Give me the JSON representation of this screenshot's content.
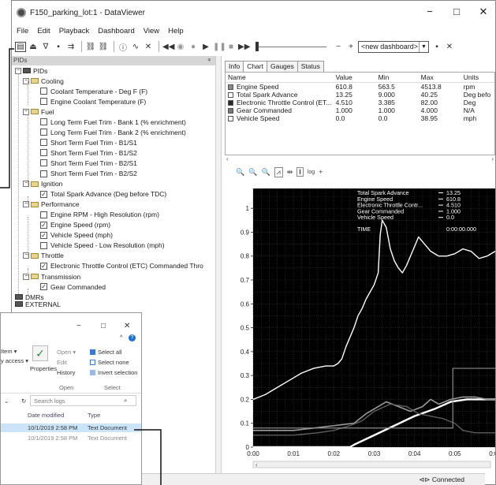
{
  "window": {
    "title": "F150_parking_lot:1 - DataViewer",
    "minimize": "−",
    "maximize": "□",
    "close": "✕"
  },
  "menu": [
    "File",
    "Edit",
    "Playback",
    "Dashboard",
    "View",
    "Help"
  ],
  "toolbar": {
    "dashboard_select": "<new dashboard>",
    "minus": "−",
    "plus": "+"
  },
  "left_pane": {
    "header": "PIDs",
    "pin": "ᵠ",
    "tree": [
      {
        "label": "PIDs",
        "level": 0,
        "type": "root",
        "expanded": true
      },
      {
        "label": "Cooling",
        "level": 1,
        "type": "folder"
      },
      {
        "label": "Coolant Temperature - Deg F (F)",
        "level": 2,
        "type": "item",
        "checked": false
      },
      {
        "label": "Engine Coolant Temperature (F)",
        "level": 2,
        "type": "item",
        "checked": false
      },
      {
        "label": "Fuel",
        "level": 1,
        "type": "folder"
      },
      {
        "label": "Long Term Fuel Trim - Bank 1 (% enrichment)",
        "level": 2,
        "type": "item",
        "checked": false
      },
      {
        "label": "Long Term Fuel Trim - Bank 2 (% enrichment)",
        "level": 2,
        "type": "item",
        "checked": false
      },
      {
        "label": "Short Term Fuel Trim - B1/S1",
        "level": 2,
        "type": "item",
        "checked": false
      },
      {
        "label": "Short Term Fuel Trim - B1/S2",
        "level": 2,
        "type": "item",
        "checked": false
      },
      {
        "label": "Short Term Fuel Trim - B2/S1",
        "level": 2,
        "type": "item",
        "checked": false
      },
      {
        "label": "Short Term Fuel Trim - B2/S2",
        "level": 2,
        "type": "item",
        "checked": false
      },
      {
        "label": "Ignition",
        "level": 1,
        "type": "folder"
      },
      {
        "label": "Total Spark Advance (Deg before TDC)",
        "level": 2,
        "type": "item",
        "checked": true
      },
      {
        "label": "Performance",
        "level": 1,
        "type": "folder"
      },
      {
        "label": "Engine RPM - High Resolution (rpm)",
        "level": 2,
        "type": "item",
        "checked": false
      },
      {
        "label": "Engine Speed (rpm)",
        "level": 2,
        "type": "item",
        "checked": true
      },
      {
        "label": "Vehicle Speed (mph)",
        "level": 2,
        "type": "item",
        "checked": true
      },
      {
        "label": "Vehicle Speed - Low Resolution (mph)",
        "level": 2,
        "type": "item",
        "checked": false
      },
      {
        "label": "Throttle",
        "level": 1,
        "type": "folder"
      },
      {
        "label": "Electronic Throttle Control (ETC) Commanded Thro",
        "level": 2,
        "type": "item",
        "checked": true
      },
      {
        "label": "Transmission",
        "level": 1,
        "type": "folder"
      },
      {
        "label": "Gear Commanded",
        "level": 2,
        "type": "item",
        "checked": true
      },
      {
        "label": "DMRs",
        "level": 0,
        "type": "root"
      },
      {
        "label": "EXTERNAL",
        "level": 0,
        "type": "root"
      }
    ]
  },
  "tabs": [
    "Info",
    "Chart",
    "Gauges",
    "Status"
  ],
  "grid": {
    "columns": [
      "Name",
      "Value",
      "Min",
      "Max",
      "Units"
    ],
    "rows": [
      {
        "name": "Engine Speed",
        "value": "610.8",
        "min": "563.5",
        "max": "4513.8",
        "units": "rpm",
        "color": "#8a8a8a"
      },
      {
        "name": "Total Spark Advance",
        "value": "13.25",
        "min": "9.000",
        "max": "40.25",
        "units": "Deg befo",
        "color": "#ffffff"
      },
      {
        "name": "Electronic Throttle Control (ET...",
        "value": "4.510",
        "min": "3.385",
        "max": "82.00",
        "units": "Deg",
        "color": "#2a2a2a"
      },
      {
        "name": "Gear Commanded",
        "value": "1.000",
        "min": "1.000",
        "max": "4.000",
        "units": "N/A",
        "color": "#777777"
      },
      {
        "name": "Vehicle Speed",
        "value": "0.0",
        "min": "0.0",
        "max": "38.95",
        "units": "mph",
        "color": "#ffffff"
      }
    ]
  },
  "chart_tools": [
    "🔍",
    "🔍",
    "🔍",
    "⩘",
    "⇹",
    "I",
    "log",
    "+"
  ],
  "chart_data": {
    "type": "line",
    "x_ticks": [
      "0:00",
      "0:01",
      "0:02",
      "0:03",
      "0:04",
      "0:05",
      "0:06"
    ],
    "y_ticks": [
      "0",
      "0.1",
      "0.2",
      "0.3",
      "0.4",
      "0.5",
      "0.6",
      "0.7",
      "0.8",
      "0.9",
      "1"
    ],
    "xlim": [
      0,
      6
    ],
    "ylim": [
      0,
      1.05
    ],
    "grid": true,
    "legend_position": "top-right",
    "legend": [
      {
        "name": "Total Spark Advance",
        "value": "13.25"
      },
      {
        "name": "Engine Speed",
        "value": "610.8"
      },
      {
        "name": "Electronic Throttle Contr...",
        "value": "4.510"
      },
      {
        "name": "Gear Commanded",
        "value": "1.000"
      },
      {
        "name": "Vehicle Speed",
        "value": "0.0"
      }
    ],
    "time_label": "TIME",
    "time_value": "0:00:00.000",
    "series": [
      {
        "name": "Total Spark Advance",
        "color": "#ffffff",
        "width": 1.4,
        "x": [
          0.0,
          0.3,
          0.6,
          0.9,
          1.2,
          1.5,
          1.8,
          2.0,
          2.1,
          2.2,
          2.3,
          2.4,
          2.5,
          2.6,
          2.7,
          2.8,
          2.9,
          3.0,
          3.1,
          3.15,
          3.2,
          3.3,
          3.4,
          3.5,
          3.6,
          3.7,
          3.8,
          3.9,
          4.0,
          4.1,
          4.2,
          4.4,
          4.6,
          4.8,
          5.0,
          5.2,
          5.4,
          5.6,
          5.8,
          6.0
        ],
        "y": [
          0.2,
          0.22,
          0.25,
          0.28,
          0.31,
          0.33,
          0.34,
          0.34,
          0.35,
          0.37,
          0.42,
          0.46,
          0.5,
          0.55,
          0.58,
          0.62,
          0.65,
          0.68,
          0.73,
          0.89,
          0.95,
          0.92,
          0.83,
          0.78,
          0.75,
          0.73,
          0.76,
          0.8,
          0.84,
          0.88,
          0.86,
          0.82,
          0.8,
          0.8,
          0.81,
          0.83,
          0.82,
          0.79,
          0.8,
          0.82
        ]
      },
      {
        "name": "Vehicle Speed",
        "color": "#ffffff",
        "width": 2.4,
        "x": [
          0,
          1.5,
          2.4,
          2.5,
          3.0,
          3.5,
          4.0,
          4.5,
          4.9,
          5.3,
          5.7,
          6.0
        ],
        "y": [
          0,
          0,
          0,
          0.01,
          0.05,
          0.09,
          0.13,
          0.16,
          0.19,
          0.2,
          0.2,
          0.2
        ]
      },
      {
        "name": "Engine Speed",
        "color": "#9a9a9a",
        "width": 1.6,
        "x": [
          0,
          0.5,
          1.0,
          1.5,
          2.0,
          2.5,
          2.8,
          3.0,
          3.3,
          3.6,
          3.9,
          4.2,
          4.4,
          4.6,
          4.9,
          5.2,
          5.5,
          5.8,
          6.0
        ],
        "y": [
          0.07,
          0.07,
          0.07,
          0.08,
          0.09,
          0.1,
          0.14,
          0.16,
          0.19,
          0.17,
          0.15,
          0.17,
          0.2,
          0.18,
          0.2,
          0.21,
          0.21,
          0.2,
          0.2
        ]
      },
      {
        "name": "Electronic Throttle Control (ETC)",
        "color": "#5e5e5e",
        "width": 1.4,
        "x": [
          0,
          1.0,
          1.6,
          2.0,
          2.4,
          2.7,
          3.0,
          3.4,
          3.8,
          4.1,
          4.4,
          4.7,
          5.0,
          5.2,
          5.5,
          5.8,
          6.0
        ],
        "y": [
          0.05,
          0.05,
          0.06,
          0.07,
          0.09,
          0.11,
          0.15,
          0.18,
          0.17,
          0.14,
          0.13,
          0.12,
          0.1,
          0.07,
          0.06,
          0.06,
          0.06
        ]
      },
      {
        "name": "Gear Commanded",
        "color": "#8c8c8c",
        "width": 1.2,
        "x": [
          0,
          4.95,
          4.95,
          6.0
        ],
        "y": [
          0.08,
          0.08,
          0.33,
          0.33
        ]
      }
    ]
  },
  "status": {
    "connected": "Connected",
    "conn_icon": "⊲⊳"
  },
  "explorer": {
    "item": "Item ▾",
    "access": "y access ▾",
    "properties": "Properties",
    "open_btn": "Open ▾",
    "edit_btn": "Edit",
    "history_btn": "History",
    "open_group": "Open",
    "select_all": "Select all",
    "select_none": "Select none",
    "invert_selection": "Invert selection",
    "select_group": "Select",
    "minimize": "−",
    "maximize": "□",
    "close": "✕",
    "search_placeholder": "Search logs",
    "col_date": "Date modified",
    "col_type": "Type",
    "rows": [
      {
        "date": "10/1/2019 2:58 PM",
        "type": "Text Document"
      },
      {
        "date": "10/1/2019 2:58 PM",
        "type": "Text Document"
      }
    ]
  }
}
